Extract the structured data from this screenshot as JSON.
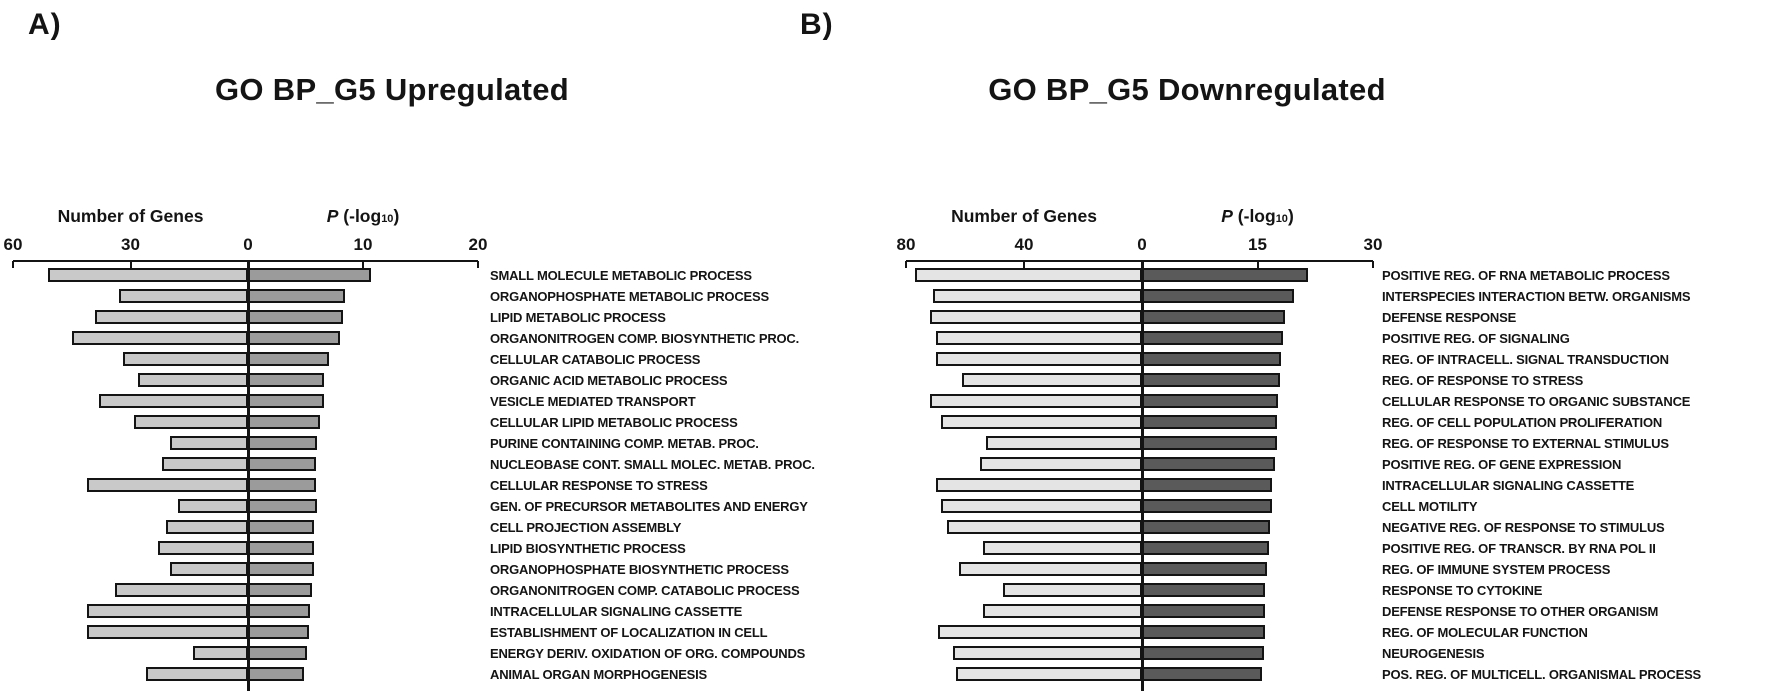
{
  "figure": {
    "background": "#ffffff",
    "text_color": "#141414"
  },
  "panels": [
    {
      "tag": "A)",
      "title": "GO BP_G5 Upregulated"
    },
    {
      "tag": "B)",
      "title": "GO BP_G5 Downregulated"
    }
  ],
  "chart_data": [
    {
      "panel": "A",
      "type": "bar",
      "orientation": "horizontal-diverging",
      "title": "GO BP_G5 Upregulated",
      "grid": false,
      "legend_position": "none",
      "left_axis": {
        "label": "Number of Genes",
        "ticks": [
          60,
          30,
          0
        ],
        "max": 60
      },
      "right_axis": {
        "label_parts": {
          "italic": "P",
          "pre": " (-log",
          "sub": "10",
          "post": ")"
        },
        "label": "P (-log10)",
        "ticks": [
          10,
          20
        ],
        "max": 20
      },
      "categories": [
        "SMALL MOLECULE METABOLIC PROCESS",
        "ORGANOPHOSPHATE METABOLIC PROCESS",
        "LIPID METABOLIC PROCESS",
        "ORGANONITROGEN COMP. BIOSYNTHETIC PROC.",
        "CELLULAR CATABOLIC PROCESS",
        "ORGANIC ACID METABOLIC PROCESS",
        "VESICLE MEDIATED TRANSPORT",
        "CELLULAR LIPID METABOLIC PROCESS",
        "PURINE CONTAINING COMP. METAB. PROC.",
        "NUCLEOBASE CONT. SMALL MOLEC. METAB. PROC.",
        "CELLULAR RESPONSE TO STRESS",
        "GEN. OF PRECURSOR METABOLITES AND ENERGY",
        "CELL PROJECTION ASSEMBLY",
        "LIPID BIOSYNTHETIC PROCESS",
        "ORGANOPHOSPHATE BIOSYNTHETIC PROCESS",
        "ORGANONITROGEN COMP. CATABOLIC PROCESS",
        "INTRACELLULAR SIGNALING CASSETTE",
        "ESTABLISHMENT OF LOCALIZATION IN CELL",
        "ENERGY DERIV. OXIDATION OF ORG. COMPOUNDS",
        "ANIMAL ORGAN MORPHOGENESIS"
      ],
      "series": [
        {
          "name": "Number of Genes",
          "side": "left",
          "color": "#c9c9c9",
          "values": [
            51,
            33,
            39,
            45,
            32,
            28,
            38,
            29,
            20,
            22,
            41,
            18,
            21,
            23,
            20,
            34,
            41,
            41,
            14,
            26
          ]
        },
        {
          "name": "P (-log10)",
          "side": "right",
          "color": "#9b9b9b",
          "values": [
            10.7,
            8.4,
            8.3,
            8.0,
            7.0,
            6.6,
            6.6,
            6.3,
            6.0,
            5.9,
            5.9,
            6.0,
            5.7,
            5.7,
            5.7,
            5.6,
            5.4,
            5.3,
            5.1,
            4.9
          ]
        }
      ]
    },
    {
      "panel": "B",
      "type": "bar",
      "orientation": "horizontal-diverging",
      "title": "GO BP_G5 Downregulated",
      "grid": false,
      "legend_position": "none",
      "left_axis": {
        "label": "Number of Genes",
        "ticks": [
          80,
          40,
          0
        ],
        "max": 80
      },
      "right_axis": {
        "label_parts": {
          "italic": "P",
          "pre": " (-log",
          "sub": "10",
          "post": ")"
        },
        "label": "P (-log10)",
        "ticks": [
          15,
          30
        ],
        "max": 30
      },
      "categories": [
        "POSITIVE REG. OF RNA METABOLIC PROCESS",
        "INTERSPECIES INTERACTION BETW. ORGANISMS",
        "DEFENSE RESPONSE",
        "POSITIVE REG. OF SIGNALING",
        "REG. OF INTRACELL. SIGNAL TRANSDUCTION",
        "REG. OF RESPONSE TO STRESS",
        "CELLULAR RESPONSE TO ORGANIC SUBSTANCE",
        "REG. OF CELL POPULATION PROLIFERATION",
        "REG. OF RESPONSE TO EXTERNAL STIMULUS",
        "POSITIVE REG. OF GENE EXPRESSION",
        "INTRACELLULAR SIGNALING CASSETTE",
        "CELL MOTILITY",
        "NEGATIVE REG. OF RESPONSE TO STIMULUS",
        "POSITIVE REG. OF TRANSCR. BY RNA POL II",
        "REG. OF IMMUNE SYSTEM PROCESS",
        "RESPONSE TO CYTOKINE",
        "DEFENSE RESPONSE TO OTHER ORGANISM",
        "REG. OF MOLECULAR FUNCTION",
        "NEUROGENESIS",
        "POS. REG. OF MULTICELL. ORGANISMAL PROCESS"
      ],
      "series": [
        {
          "name": "Number of Genes",
          "side": "left",
          "color": "#e4e4e4",
          "values": [
            77,
            71,
            72,
            70,
            70,
            61,
            72,
            68,
            53,
            55,
            70,
            68,
            66,
            54,
            62,
            47,
            54,
            69,
            64,
            63
          ]
        },
        {
          "name": "P (-log10)",
          "side": "right",
          "color": "#5a5a5a",
          "values": [
            21.5,
            19.7,
            18.6,
            18.3,
            18.1,
            17.9,
            17.7,
            17.5,
            17.5,
            17.3,
            16.9,
            16.9,
            16.6,
            16.5,
            16.2,
            16.0,
            16.0,
            16.0,
            15.9,
            15.6
          ]
        }
      ]
    }
  ]
}
